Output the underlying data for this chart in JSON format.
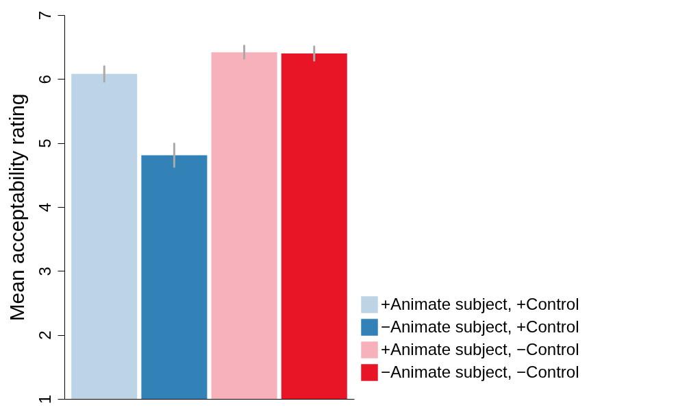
{
  "chart_data": {
    "type": "bar",
    "ylabel": "Mean acceptability rating",
    "categories": [
      null,
      null,
      null,
      null
    ],
    "series": [
      {
        "name": "+Animate subject, +Control",
        "color": "#bcd4e6",
        "values": [
          6.08,
          null,
          null,
          null
        ],
        "errors": [
          0.12,
          null,
          null,
          null
        ]
      },
      {
        "name": "−Animate subject, +Control",
        "color": "#3282b8",
        "values": [
          null,
          4.81,
          null,
          null
        ],
        "errors": [
          null,
          0.18,
          null,
          null
        ]
      },
      {
        "name": "+Animate subject, −Control",
        "color": "#f7b1ba",
        "values": [
          null,
          null,
          6.42,
          null
        ],
        "errors": [
          null,
          null,
          0.1,
          null
        ]
      },
      {
        "name": "−Animate subject, −Control",
        "color": "#e81526",
        "values": [
          null,
          null,
          null,
          6.4
        ],
        "errors": [
          null,
          null,
          null,
          0.11
        ]
      }
    ],
    "ylim": [
      1,
      7
    ],
    "yticks": [
      1,
      2,
      3,
      4,
      5,
      6,
      7
    ],
    "grid": false,
    "legend": "bottom right",
    "tick_labels": "y"
  }
}
